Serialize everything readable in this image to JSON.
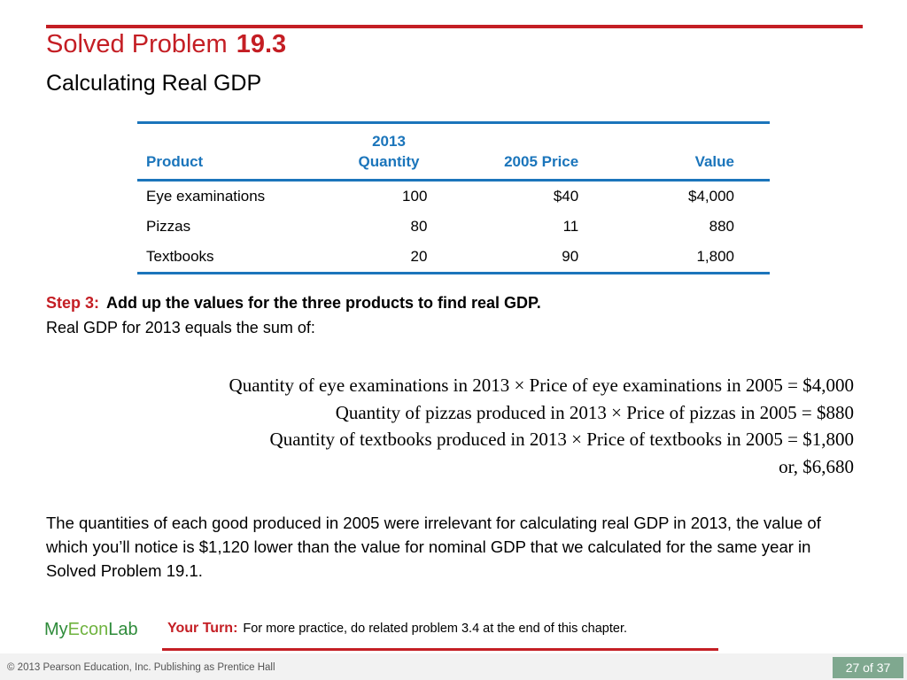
{
  "header": {
    "title": "Solved Problem",
    "number": "19.3",
    "subtitle": "Calculating Real GDP"
  },
  "table": {
    "headers": {
      "product": "Product",
      "quantity_year": "2013",
      "quantity": "Quantity",
      "price": "2005 Price",
      "value": "Value"
    },
    "rows": [
      {
        "product": "Eye examinations",
        "quantity": "100",
        "price": "$40",
        "value": "$4,000"
      },
      {
        "product": "Pizzas",
        "quantity": "80",
        "price": "11",
        "value": "880"
      },
      {
        "product": "Textbooks",
        "quantity": "20",
        "price": "90",
        "value": "1,800"
      }
    ]
  },
  "step": {
    "label": "Step 3:",
    "text": "Add up the values for the three products to find real GDP.",
    "subtext": "Real GDP for 2013 equals the sum of:"
  },
  "equations": [
    "Quantity of eye examinations in 2013 × Price of eye examinations in 2005 = $4,000",
    "Quantity of pizzas produced in 2013 × Price of pizzas in 2005 = $880",
    "Quantity of textbooks produced in 2013 × Price of textbooks in 2005 = $1,800",
    "or, $6,680"
  ],
  "paragraph": "The quantities of each good produced in 2005 were irrelevant for calculating real GDP in 2013, the value of which you’ll notice is $1,120 lower than the value for nominal GDP that we calculated for the same year in Solved Problem 19.1.",
  "footer": {
    "logo_my": "My",
    "logo_econ": "Econ",
    "logo_lab": "Lab",
    "your_turn_label": "Your Turn:",
    "your_turn_text": "For more practice, do related problem 3.4 at the end of this chapter.",
    "copyright": "© 2013 Pearson Education, Inc. Publishing as Prentice Hall",
    "page": "27 of 37"
  },
  "colors": {
    "accent_red": "#c41e24",
    "table_blue": "#1b75bb",
    "logo_green": "#2e8b3a",
    "page_badge": "#7fa88f"
  }
}
